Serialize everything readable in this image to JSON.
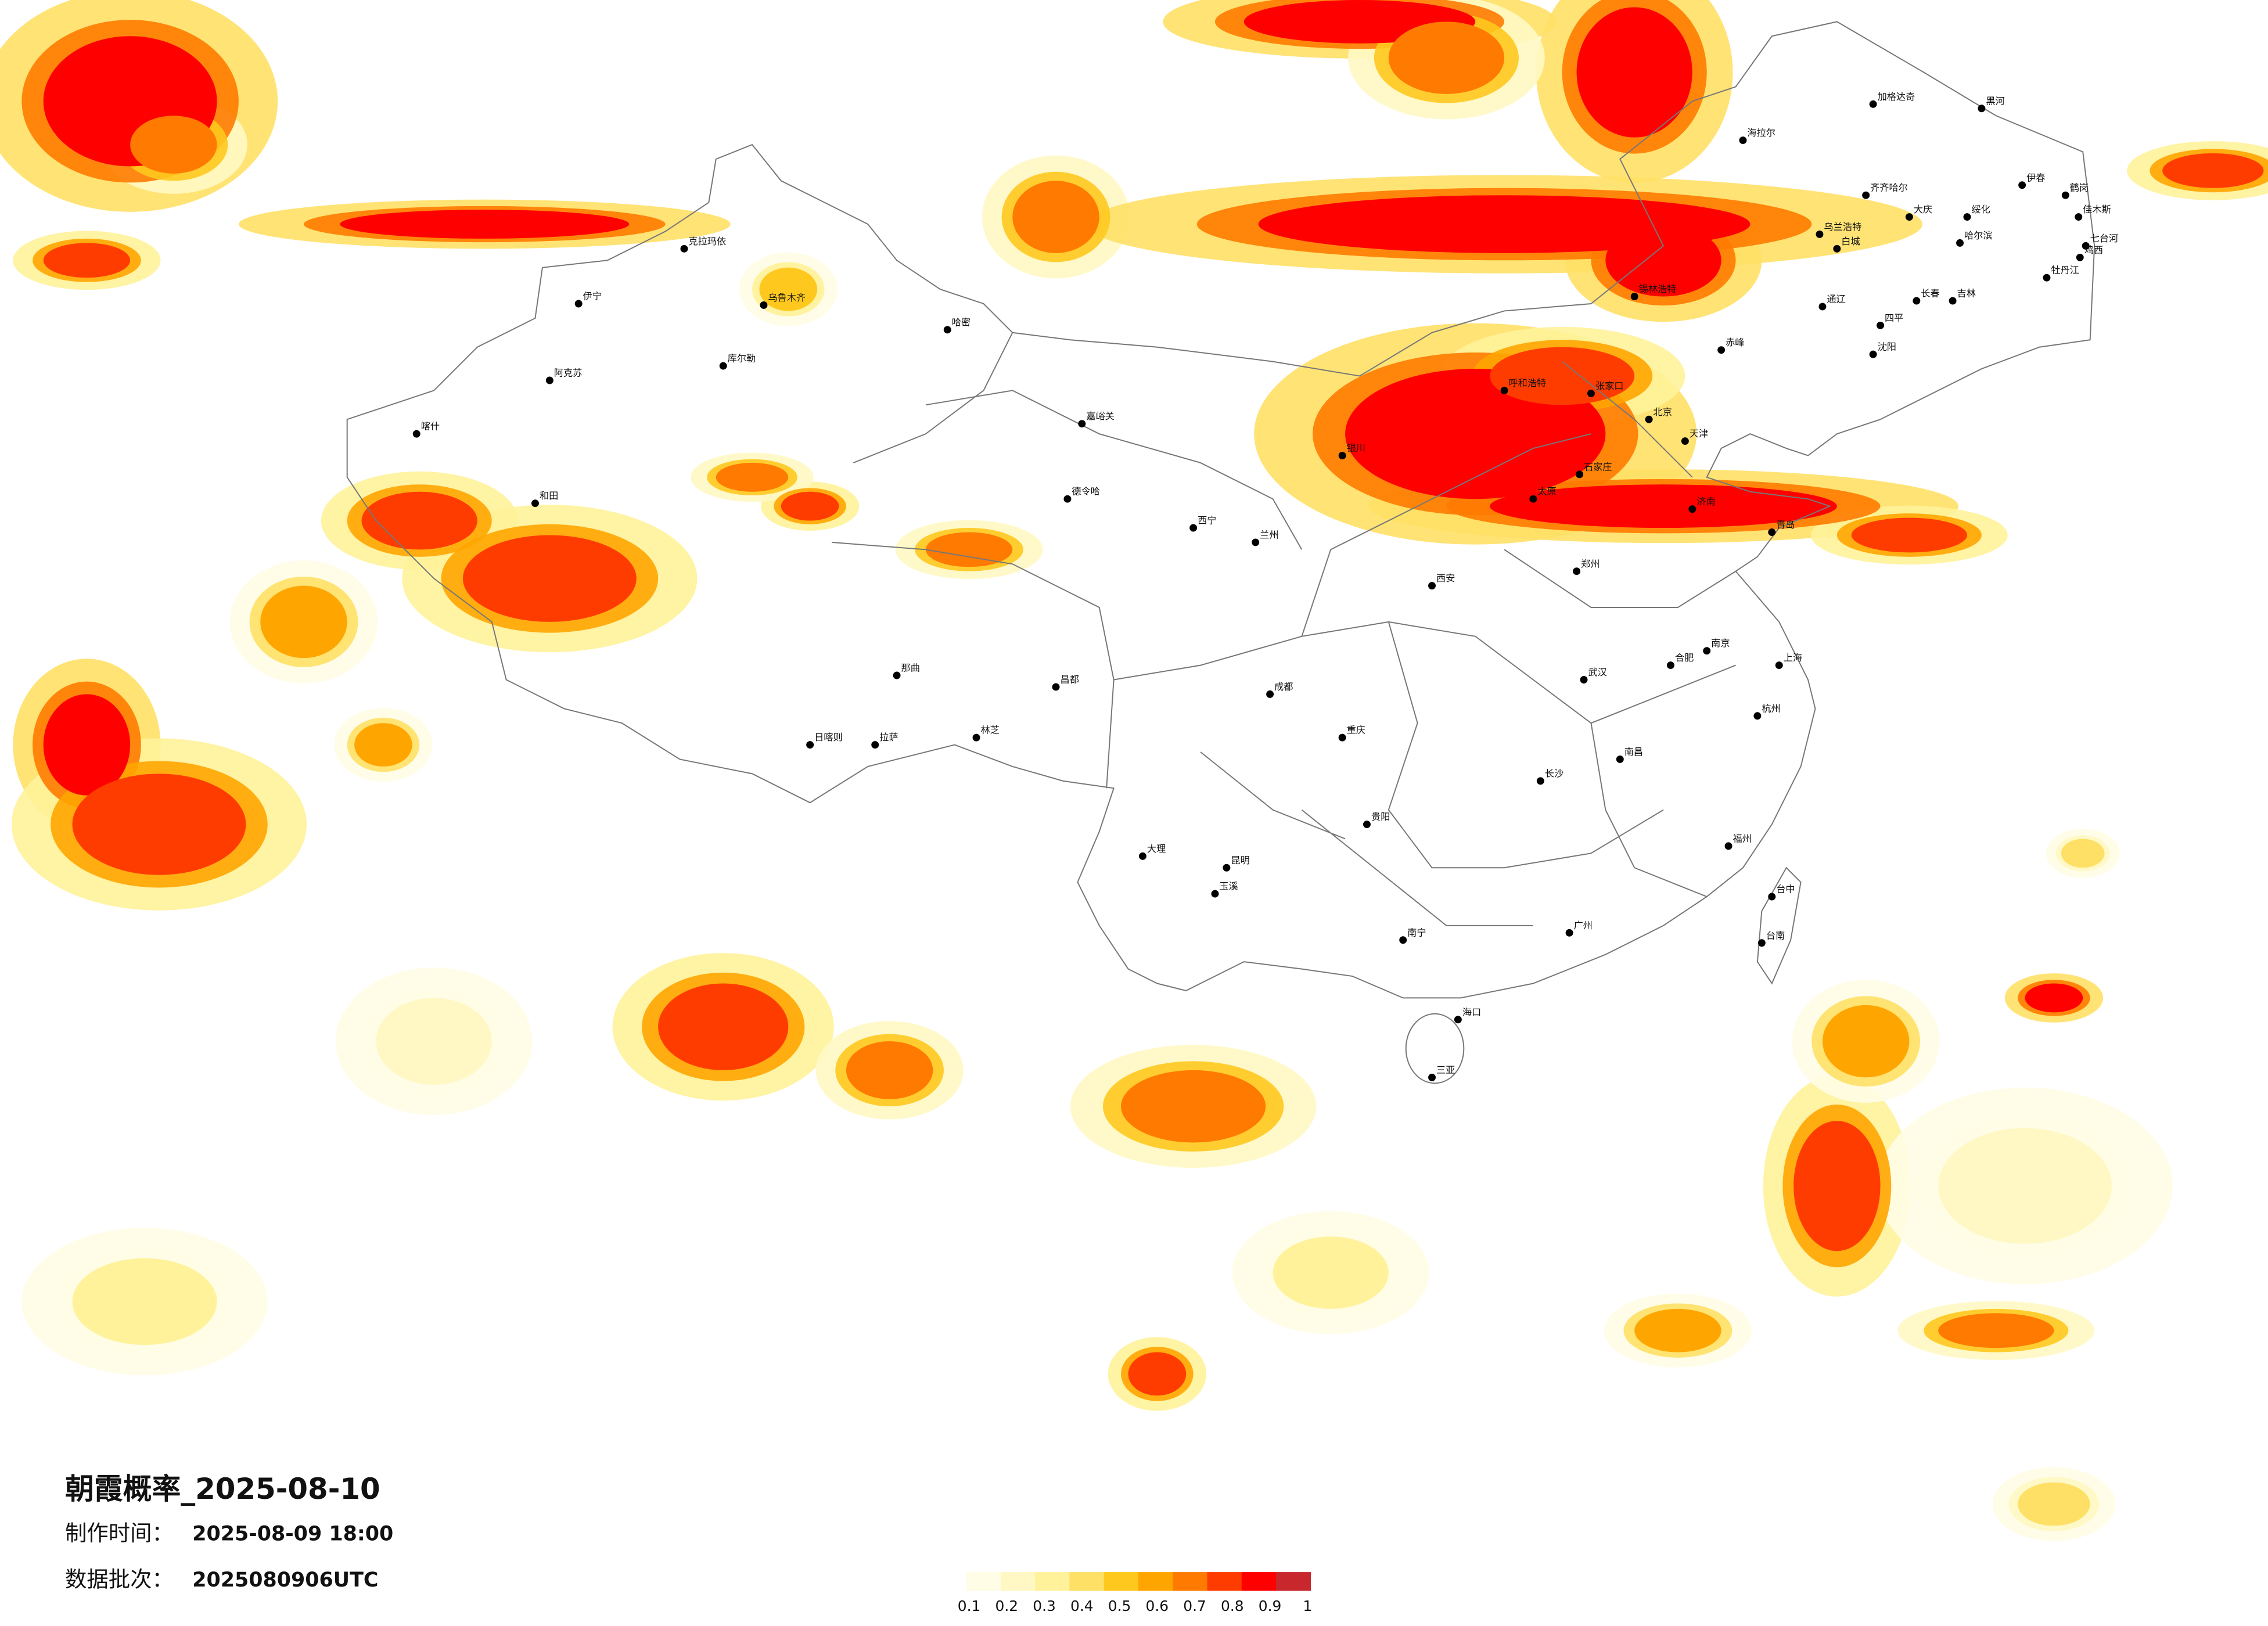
{
  "title": "朝霞概率_2025-08-10",
  "made_label": "制作时间：",
  "made_time": "2025-08-09 18:00",
  "batch_label": "数据批次：",
  "batch": "2025080906UTC",
  "legend": {
    "values": [
      0.1,
      0.2,
      0.3,
      0.4,
      0.5,
      0.6,
      0.7,
      0.8,
      0.9,
      1
    ],
    "colors": [
      "#fffde6",
      "#fff8c4",
      "#fff29a",
      "#ffe066",
      "#ffc81e",
      "#ffa500",
      "#ff7a00",
      "#ff3c00",
      "#ff0000",
      "#c8282d"
    ]
  },
  "cities": [
    "加格达奇",
    "黑河",
    "海拉尔",
    "齐齐哈尔",
    "大庆",
    "伊春",
    "鹤岗",
    "佳木斯",
    "七台河",
    "鸡西",
    "哈尔滨",
    "绥化",
    "牡丹江",
    "长春",
    "吉林",
    "乌兰浩特",
    "白城",
    "通辽",
    "四平",
    "沈阳",
    "赤峰",
    "锡林浩特",
    "张家口",
    "呼和浩特",
    "北京",
    "天津",
    "石家庄",
    "太原",
    "济南",
    "青岛",
    "郑州",
    "西安",
    "武汉",
    "南京",
    "上海",
    "杭州",
    "合肥",
    "长沙",
    "南昌",
    "福州",
    "台中",
    "台南",
    "广州",
    "南宁",
    "海口",
    "三亚",
    "贵阳",
    "昆明",
    "成都",
    "重庆",
    "拉萨",
    "日喀则",
    "林芝",
    "那曲",
    "昌都",
    "西宁",
    "兰州",
    "银川",
    "嘉峪关",
    "德令哈",
    "乌鲁木齐",
    "克拉玛依",
    "伊宁",
    "阿克苏",
    "喀什",
    "和田",
    "库尔勒",
    "哈密",
    "大理",
    "玉溪"
  ]
}
